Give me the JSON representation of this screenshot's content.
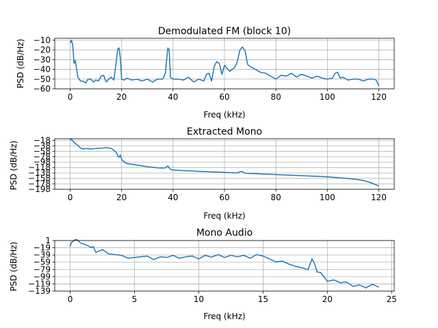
{
  "chart_data": [
    {
      "type": "line",
      "title": "Demodulated FM (block 10)",
      "xlabel": "Freq (kHz)",
      "ylabel": "PSD (dB/Hz)",
      "xlim": [
        -6,
        126
      ],
      "ylim": [
        -60,
        -8
      ],
      "xticks": [
        0,
        20,
        40,
        60,
        80,
        100,
        120
      ],
      "yticks": [
        -60,
        -50,
        -40,
        -30,
        -20,
        -10
      ],
      "grid": true,
      "series_color": "#1f77b4",
      "x": [
        0,
        0.5,
        1,
        1.5,
        2,
        3,
        4,
        5,
        6,
        7,
        8,
        9,
        10,
        11,
        12,
        13,
        14,
        15,
        16,
        17,
        18,
        18.5,
        19,
        19.5,
        20,
        21,
        22,
        24,
        26,
        28,
        30,
        32,
        34,
        36,
        37,
        37.5,
        38,
        38.5,
        39,
        40,
        42,
        44,
        46,
        48,
        50,
        52,
        53,
        54,
        55,
        56,
        57,
        58,
        59,
        60,
        62,
        64,
        65,
        66,
        67,
        68,
        69,
        70,
        72,
        74,
        76,
        78,
        80,
        82,
        84,
        86,
        88,
        90,
        92,
        94,
        96,
        98,
        100,
        102,
        103,
        104,
        105,
        106,
        108,
        110,
        112,
        114,
        116,
        118,
        119,
        120
      ],
      "y": [
        -13,
        -10,
        -15,
        -34,
        -31,
        -48,
        -52,
        -52,
        -54,
        -50,
        -50,
        -53,
        -51,
        -52,
        -47,
        -46,
        -53,
        -50,
        -48,
        -51,
        -30,
        -19,
        -18,
        -28,
        -50,
        -51,
        -49,
        -51,
        -50,
        -52,
        -50,
        -53,
        -50,
        -50,
        -44,
        -30,
        -18,
        -20,
        -48,
        -50,
        -50,
        -51,
        -48,
        -53,
        -50,
        -52,
        -45,
        -44,
        -52,
        -37,
        -32,
        -34,
        -45,
        -36,
        -42,
        -38,
        -32,
        -20,
        -17,
        -21,
        -35,
        -37,
        -40,
        -43,
        -44,
        -47,
        -50,
        -46,
        -47,
        -44,
        -48,
        -45,
        -47,
        -49,
        -47,
        -49,
        -50,
        -49,
        -44,
        -43,
        -49,
        -48,
        -51,
        -50,
        -50,
        -52,
        -50,
        -50,
        -51,
        -57
      ]
    },
    {
      "type": "line",
      "title": "Extracted Mono",
      "xlabel": "Freq (kHz)",
      "ylabel": "PSD (dB/Hz)",
      "xlim": [
        -6,
        126
      ],
      "ylim": [
        -198,
        -12
      ],
      "xticks": [
        0,
        20,
        40,
        60,
        80,
        100,
        120
      ],
      "yticks": [
        -198,
        -178,
        -158,
        -138,
        -118,
        -98,
        -78,
        -58,
        -38,
        -18
      ],
      "grid": true,
      "series_color": "#1f77b4",
      "x": [
        0,
        0.5,
        1,
        2,
        3,
        4,
        5,
        6,
        8,
        10,
        12,
        14,
        15,
        16,
        17,
        18,
        18.5,
        19,
        19.5,
        20,
        21,
        22,
        24,
        26,
        28,
        30,
        32,
        34,
        36,
        37,
        38,
        38.5,
        39,
        40,
        45,
        50,
        55,
        60,
        65,
        66,
        67,
        68,
        70,
        75,
        80,
        85,
        90,
        95,
        100,
        105,
        110,
        113,
        115,
        117,
        119,
        120
      ],
      "y": [
        -17,
        -14,
        -20,
        -30,
        -37,
        -46,
        -50,
        -48,
        -50,
        -48,
        -47,
        -45,
        -46,
        -48,
        -55,
        -63,
        -75,
        -80,
        -72,
        -88,
        -98,
        -103,
        -106,
        -109,
        -112,
        -115,
        -117,
        -119,
        -120,
        -119,
        -112,
        -118,
        -125,
        -127,
        -130,
        -132,
        -134,
        -136,
        -138,
        -134,
        -133,
        -139,
        -140,
        -142,
        -144,
        -146,
        -148,
        -150,
        -152,
        -156,
        -160,
        -164,
        -168,
        -174,
        -182,
        -186
      ]
    },
    {
      "type": "line",
      "title": "Mono Audio",
      "xlabel": "Freq (kHz)",
      "ylabel": "PSD (dB/Hz)",
      "xlim": [
        -1.2,
        25.2
      ],
      "ylim": [
        -139,
        1
      ],
      "xticks": [
        0,
        5,
        10,
        15,
        20,
        25
      ],
      "yticks": [
        -139,
        -119,
        -99,
        -79,
        -59,
        -39,
        -19,
        1
      ],
      "grid": true,
      "series_color": "#1f77b4",
      "x": [
        0,
        0.1,
        0.2,
        0.4,
        0.6,
        0.8,
        1.0,
        1.3,
        1.6,
        1.8,
        2.0,
        2.5,
        3,
        3.5,
        4,
        4.5,
        5,
        5.5,
        6,
        6.5,
        7,
        7.5,
        8,
        8.5,
        9,
        9.5,
        10,
        10.5,
        11,
        11.5,
        12,
        12.5,
        13,
        13.5,
        14,
        14.5,
        15,
        15.5,
        16,
        16.5,
        17,
        17.5,
        18,
        18.5,
        18.8,
        19,
        19.2,
        19.5,
        20,
        20.5,
        21,
        21.5,
        22,
        22.5,
        23,
        23.5,
        24
      ],
      "y": [
        -16,
        -4,
        -2,
        4,
        2,
        -6,
        -8,
        -12,
        -18,
        -16,
        -32,
        -24,
        -36,
        -38,
        -40,
        -48,
        -46,
        -44,
        -42,
        -52,
        -44,
        -46,
        -40,
        -48,
        -44,
        -42,
        -50,
        -40,
        -45,
        -38,
        -46,
        -40,
        -44,
        -40,
        -48,
        -38,
        -42,
        -50,
        -58,
        -56,
        -64,
        -70,
        -74,
        -80,
        -50,
        -62,
        -86,
        -88,
        -112,
        -108,
        -116,
        -114,
        -126,
        -122,
        -130,
        -120,
        -128
      ]
    }
  ]
}
